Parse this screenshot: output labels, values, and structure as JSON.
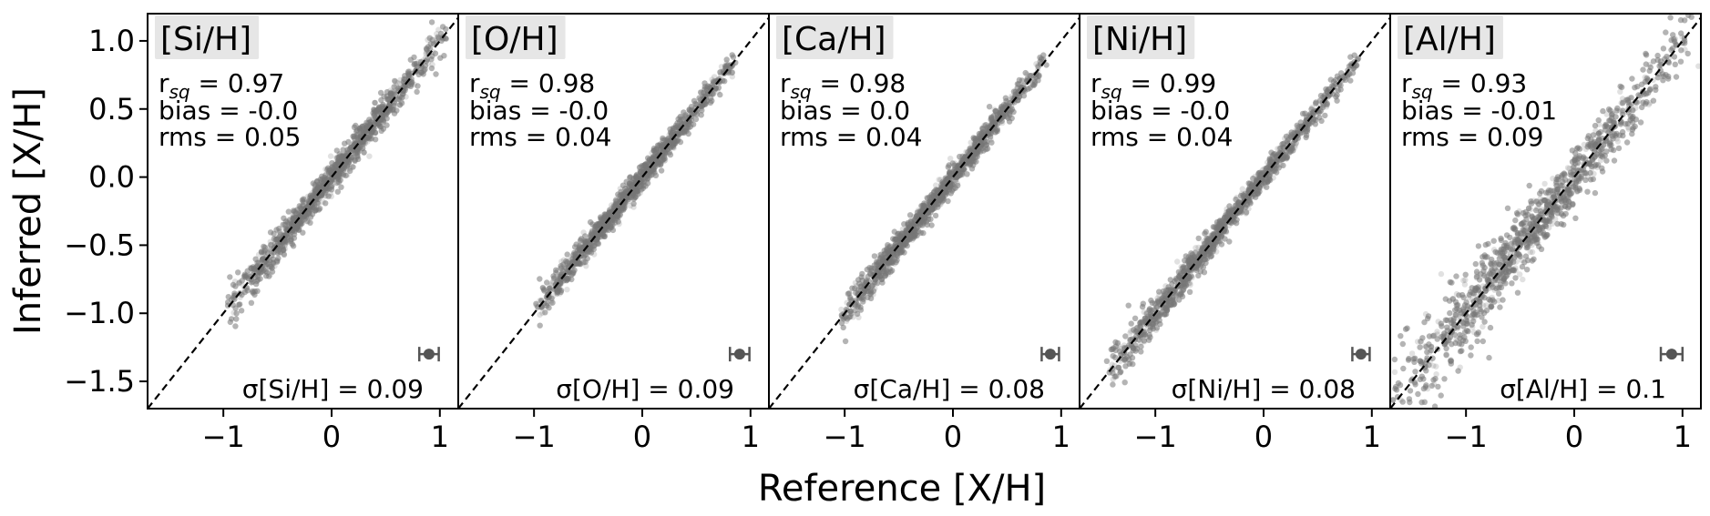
{
  "chart_data": {
    "type": "scatter",
    "xlabel": "Reference [X/H]",
    "ylabel": "Inferred [X/H]",
    "xlim": [
      -1.7,
      1.17
    ],
    "ylim": [
      -1.7,
      1.2
    ],
    "x_ticks": [
      -1,
      0,
      1
    ],
    "x_tick_labels": [
      "−1",
      "0",
      "1"
    ],
    "y_ticks": [
      1.0,
      0.5,
      0.0,
      -0.5,
      -1.0,
      -1.5
    ],
    "y_tick_labels": [
      "1.0",
      "0.5",
      "0.0",
      "−0.5",
      "−1.0",
      "−1.5"
    ],
    "point_color": "#777777",
    "grid": false,
    "panels": [
      {
        "element": "[Si/H]",
        "title": "[Si/H]",
        "rsq": "0.97",
        "bias": "-0.0",
        "rms": "0.05",
        "sigma_label": "σ[Si/H] = 0.09",
        "sigma": 0.09,
        "range": [
          -0.92,
          1.05
        ],
        "spread": 0.05
      },
      {
        "element": "[O/H]",
        "title": "[O/H]",
        "rsq": "0.98",
        "bias": "-0.0",
        "rms": "0.04",
        "sigma_label": "σ[O/H] = 0.09",
        "sigma": 0.09,
        "range": [
          -0.97,
          0.85
        ],
        "spread": 0.04
      },
      {
        "element": "[Ca/H]",
        "title": "[Ca/H]",
        "rsq": "0.98",
        "bias": "0.0",
        "rms": "0.04",
        "sigma_label": "σ[Ca/H] = 0.08",
        "sigma": 0.08,
        "range": [
          -1.02,
          0.85
        ],
        "spread": 0.04
      },
      {
        "element": "[Ni/H]",
        "title": "[Ni/H]",
        "rsq": "0.99",
        "bias": "-0.0",
        "rms": "0.04",
        "sigma_label": "σ[Ni/H] = 0.08",
        "sigma": 0.08,
        "range": [
          -1.45,
          0.85
        ],
        "spread": 0.04
      },
      {
        "element": "[Al/H]",
        "title": "[Al/H]",
        "rsq": "0.93",
        "bias": "-0.01",
        "rms": "0.09",
        "sigma_label": "σ[Al/H] = 0.1",
        "sigma": 0.1,
        "range": [
          -1.7,
          1.1
        ],
        "spread": 0.09
      }
    ],
    "stat_labels": {
      "rsq_prefix": "r",
      "rsq_sub": "sq",
      "bias_prefix": "bias = ",
      "rms_prefix": "rms = ",
      "eq": " = "
    },
    "errorbar": {
      "x": 0.9,
      "y": -1.3
    }
  }
}
